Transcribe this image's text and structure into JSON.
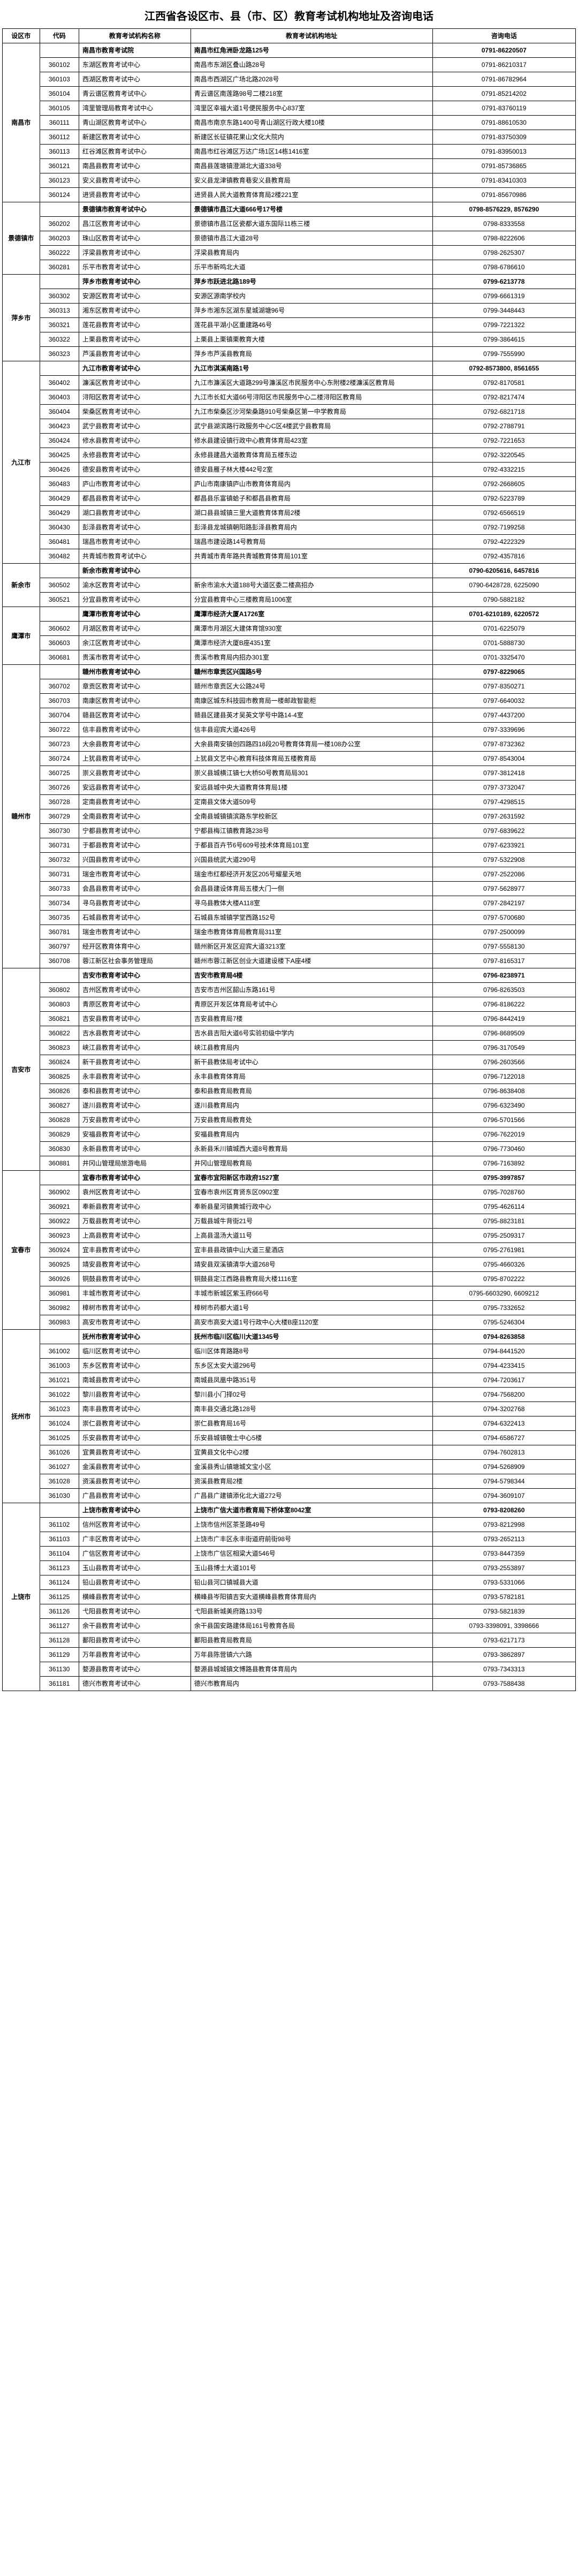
{
  "title": "江西省各设区市、县（市、区）教育考试机构地址及咨询电话",
  "columns": [
    "设区市",
    "代码",
    "教育考试机构名称",
    "教育考试机构地址",
    "咨询电话"
  ],
  "cities": [
    {
      "name": "南昌市",
      "header": {
        "name": "南昌市教育考试院",
        "addr": "南昌市红角洲卧龙路125号",
        "phone": "0791-86220507"
      },
      "rows": [
        {
          "code": "360102",
          "name": "东湖区教育考试中心",
          "addr": "南昌市东湖区叠山路28号",
          "phone": "0791-86210317"
        },
        {
          "code": "360103",
          "name": "西湖区教育考试中心",
          "addr": "南昌市西湖区广场北路2028号",
          "phone": "0791-86782964"
        },
        {
          "code": "360104",
          "name": "青云谱区教育考试中心",
          "addr": "青云谱区南莲路98号二楼218室",
          "phone": "0791-85214202"
        },
        {
          "code": "360105",
          "name": "湾里管理局教育考试中心",
          "addr": "湾里区幸福大道1号便民服务中心837室",
          "phone": "0791-83760119"
        },
        {
          "code": "360111",
          "name": "青山湖区教育考试中心",
          "addr": "南昌市南京东路1400号青山湖区行政大楼10楼",
          "phone": "0791-88610530"
        },
        {
          "code": "360112",
          "name": "新建区教育考试中心",
          "addr": "新建区长征镇花果山文化大院内",
          "phone": "0791-83750309"
        },
        {
          "code": "360113",
          "name": "红谷滩区教育考试中心",
          "addr": "南昌市红谷滩区万达广场1区14栋1416室",
          "phone": "0791-83950013"
        },
        {
          "code": "360121",
          "name": "南昌县教育考试中心",
          "addr": "南昌县莲塘镇澄湖北大道338号",
          "phone": "0791-85736865"
        },
        {
          "code": "360123",
          "name": "安义县教育考试中心",
          "addr": "安义县龙津镇教育巷安义县教育局",
          "phone": "0791-83410303"
        },
        {
          "code": "360124",
          "name": "进贤县教育考试中心",
          "addr": "进贤县人民大道教育体育局2楼221室",
          "phone": "0791-85670986"
        }
      ]
    },
    {
      "name": "景德镇市",
      "header": {
        "name": "景德镇市教育考试中心",
        "addr": "景德镇市昌江大道666号17号楼",
        "phone": "0798-8576229, 8576290"
      },
      "rows": [
        {
          "code": "360202",
          "name": "昌江区教育考试中心",
          "addr": "景德镇市昌江区瓷都大道东国际11栋三楼",
          "phone": "0798-8333558"
        },
        {
          "code": "360203",
          "name": "珠山区教育考试中心",
          "addr": "景德镇市昌江大道28号",
          "phone": "0798-8222606"
        },
        {
          "code": "360222",
          "name": "浮梁县教育考试中心",
          "addr": "浮梁县教育局内",
          "phone": "0798-2625307"
        },
        {
          "code": "360281",
          "name": "乐平市教育考试中心",
          "addr": "乐平市新鸣北大道",
          "phone": "0798-6786610"
        }
      ]
    },
    {
      "name": "萍乡市",
      "header": {
        "name": "萍乡市教育考试中心",
        "addr": "萍乡市跃进北路189号",
        "phone": "0799-6213778"
      },
      "rows": [
        {
          "code": "360302",
          "name": "安源区教育考试中心",
          "addr": "安源区源南学校内",
          "phone": "0799-6661319"
        },
        {
          "code": "360313",
          "name": "湘东区教育考试中心",
          "addr": "萍乡市湘东区湖东星城湖塘96号",
          "phone": "0799-3448443"
        },
        {
          "code": "360321",
          "name": "莲花县教育考试中心",
          "addr": "莲花县平湖小区重建路46号",
          "phone": "0799-7221322"
        },
        {
          "code": "360322",
          "name": "上栗县教育考试中心",
          "addr": "上栗县上栗镇栗教育大楼",
          "phone": "0799-3864615"
        },
        {
          "code": "360323",
          "name": "芦溪县教育考试中心",
          "addr": "萍乡市芦溪县教育局",
          "phone": "0799-7555990"
        }
      ]
    },
    {
      "name": "九江市",
      "header": {
        "name": "九江市教育考试中心",
        "addr": "九江市淇溪南路1号",
        "phone": "0792-8573800, 8561655"
      },
      "rows": [
        {
          "code": "360402",
          "name": "濂溪区教育考试中心",
          "addr": "九江市濂溪区大道路299号濂溪区市民服务中心东附楼2楼濂溪区教育局",
          "phone": "0792-8170581"
        },
        {
          "code": "360403",
          "name": "浔阳区教育考试中心",
          "addr": "九江市长虹大道66号浔阳区市民服务中心二楼浔阳区教育局",
          "phone": "0792-8217474"
        },
        {
          "code": "360404",
          "name": "柴桑区教育考试中心",
          "addr": "九江市柴桑区沙河柴桑路910号柴桑区第一中学教育局",
          "phone": "0792-6821718"
        },
        {
          "code": "360423",
          "name": "武宁县教育考试中心",
          "addr": "武宁县湖滨路行政服务中心C区4楼武宁县教育局",
          "phone": "0792-2788791"
        },
        {
          "code": "360424",
          "name": "修水县教育考试中心",
          "addr": "修水县建设镇行政中心教育体育局423室",
          "phone": "0792-7221653"
        },
        {
          "code": "360425",
          "name": "永修县教育考试中心",
          "addr": "永修县建昌大道教育体育局五楼东边",
          "phone": "0792-3220545"
        },
        {
          "code": "360426",
          "name": "德安县教育考试中心",
          "addr": "德安县雁子林大楼442号2室",
          "phone": "0792-4332215"
        },
        {
          "code": "360483",
          "name": "庐山市教育考试中心",
          "addr": "庐山市南康镇庐山市教育体育局内",
          "phone": "0792-2668605"
        },
        {
          "code": "360429",
          "name": "都昌县教育考试中心",
          "addr": "都昌县乐富镇蛤子和都昌县教育局",
          "phone": "0792-5223789"
        },
        {
          "code": "360429",
          "name": "湖口县教育考试中心",
          "addr": "湖口县县城镇三里大道教育体育局2楼",
          "phone": "0792-6566519"
        },
        {
          "code": "360430",
          "name": "彭泽县教育考试中心",
          "addr": "彭泽县龙城镇朝阳路彭泽县教育局内",
          "phone": "0792-7199258"
        },
        {
          "code": "360481",
          "name": "瑞昌市教育考试中心",
          "addr": "瑞昌市建设路14号教育局",
          "phone": "0792-4222329"
        },
        {
          "code": "360482",
          "name": "共青城市教育考试中心",
          "addr": "共青城市青年路共青城教育体育局101室",
          "phone": "0792-4357816"
        }
      ]
    },
    {
      "name": "新余市",
      "header": {
        "name": "新余市教育考试中心",
        "addr": "",
        "phone": "0790-6205616, 6457816"
      },
      "rows": [
        {
          "code": "360502",
          "name": "渝水区教育考试中心",
          "addr": "新余市渝水大道188号大道区委二楼高招办",
          "phone": "0790-6428728, 6225090"
        },
        {
          "code": "360521",
          "name": "分宜县教育考试中心",
          "addr": "分宜县教育中心三楼教育局1006室",
          "phone": "0790-5882182"
        }
      ]
    },
    {
      "name": "鹰潭市",
      "header": {
        "name": "鹰潭市教育考试中心",
        "addr": "鹰潭市经济大厦A1726室",
        "phone": "0701-6210189, 6220572"
      },
      "rows": [
        {
          "code": "360602",
          "name": "月湖区教育考试中心",
          "addr": "鹰潭市月湖区大建体育馆930室",
          "phone": "0701-6225079"
        },
        {
          "code": "360603",
          "name": "余江区教育考试中心",
          "addr": "鹰潭市经济大厦B座4351室",
          "phone": "0701-5888730"
        },
        {
          "code": "360681",
          "name": "贵溪市教育考试中心",
          "addr": "贵溪市教育局内招办301室",
          "phone": "0701-3325470"
        }
      ]
    },
    {
      "name": "赣州市",
      "header": {
        "name": "赣州市教育考试中心",
        "addr": "赣州市章贡区兴国路5号",
        "phone": "0797-8229065"
      },
      "rows": [
        {
          "code": "360702",
          "name": "章贡区教育考试中心",
          "addr": "赣州市章贡区大公路24号",
          "phone": "0797-8350271"
        },
        {
          "code": "360703",
          "name": "南康区教育考试中心",
          "addr": "南康区城东科技园市教育局一楼邮政智能柜",
          "phone": "0797-6640032"
        },
        {
          "code": "360704",
          "name": "赣县区教育考试中心",
          "addr": "赣县区建县英才吴英文学号中路14-4室",
          "phone": "0797-4437200"
        },
        {
          "code": "360722",
          "name": "信丰县教育考试中心",
          "addr": "信丰县迎宾大道426号",
          "phone": "0797-3339696"
        },
        {
          "code": "360723",
          "name": "大余县教育考试中心",
          "addr": "大余县南安镇创四路四18段20号教育体育局一楼108办公室",
          "phone": "0797-8732362"
        },
        {
          "code": "360724",
          "name": "上犹县教育考试中心",
          "addr": "上犹县文艺中心教育科技体育局五楼教育局",
          "phone": "0797-8543004"
        },
        {
          "code": "360725",
          "name": "崇义县教育考试中心",
          "addr": "崇义县城横江镇七大桥50号教育局局301",
          "phone": "0797-3812418"
        },
        {
          "code": "360726",
          "name": "安远县教育考试中心",
          "addr": "安远县城中央大道教育体育局1楼",
          "phone": "0797-3732047"
        },
        {
          "code": "360728",
          "name": "定南县教育考试中心",
          "addr": "定南县文体大道509号",
          "phone": "0797-4298515"
        },
        {
          "code": "360729",
          "name": "全南县教育考试中心",
          "addr": "全南县城镇镇滨路东学校新区",
          "phone": "0797-2631592"
        },
        {
          "code": "360730",
          "name": "宁都县教育考试中心",
          "addr": "宁都县梅江镇教育路238号",
          "phone": "0797-6839622"
        },
        {
          "code": "360731",
          "name": "于都县教育考试中心",
          "addr": "于都县百卉节6号609号技术体育局101室",
          "phone": "0797-6233921"
        },
        {
          "code": "360732",
          "name": "兴国县教育考试中心",
          "addr": "兴国县统武大道290号",
          "phone": "0797-5322908"
        },
        {
          "code": "360731",
          "name": "瑞金市教育考试中心",
          "addr": "瑞金市红都经济开发区205号耀星天地",
          "phone": "0797-2522086"
        },
        {
          "code": "360733",
          "name": "会昌县教育考试中心",
          "addr": "会昌县建设体育局五楼大门一侧",
          "phone": "0797-5628977"
        },
        {
          "code": "360734",
          "name": "寻乌县教育考试中心",
          "addr": "寻乌县教体大楼A118室",
          "phone": "0797-2842197"
        },
        {
          "code": "360735",
          "name": "石城县教育考试中心",
          "addr": "石城县东城镇学堂西路152号",
          "phone": "0797-5700680"
        },
        {
          "code": "360781",
          "name": "瑞金市教育考试中心",
          "addr": "瑞金市教育体育局教育局311室",
          "phone": "0797-2500099"
        },
        {
          "code": "360797",
          "name": "经开区教育体育中心",
          "addr": "赣州新区开发区迎宾大道3213室",
          "phone": "0797-5558130"
        },
        {
          "code": "360708",
          "name": "蓉江新区社会事务管理局",
          "addr": "赣州市蓉江新区创业大道建设楼下A座4楼",
          "phone": "0797-8165317"
        }
      ]
    },
    {
      "name": "吉安市",
      "header": {
        "name": "吉安市教育考试中心",
        "addr": "吉安市教育局4楼",
        "phone": "0796-8238971"
      },
      "rows": [
        {
          "code": "360802",
          "name": "吉州区教育考试中心",
          "addr": "吉安市吉州区韶山东路161号",
          "phone": "0796-8263503"
        },
        {
          "code": "360803",
          "name": "青原区教育考试中心",
          "addr": "青原区开发区体育局考试中心",
          "phone": "0796-8186222"
        },
        {
          "code": "360821",
          "name": "吉安县教育考试中心",
          "addr": "吉安县教育局7楼",
          "phone": "0796-8442419"
        },
        {
          "code": "360822",
          "name": "吉水县教育考试中心",
          "addr": "吉水县吉阳大道6号实验初级中学内",
          "phone": "0796-8689509"
        },
        {
          "code": "360823",
          "name": "峡江县教育考试中心",
          "addr": "峡江县教育局内",
          "phone": "0796-3170549"
        },
        {
          "code": "360824",
          "name": "新干县教育考试中心",
          "addr": "新干县教体局考试中心",
          "phone": "0796-2603566"
        },
        {
          "code": "360825",
          "name": "永丰县教育考试中心",
          "addr": "永丰县教育体育局",
          "phone": "0796-7122018"
        },
        {
          "code": "360826",
          "name": "泰和县教育考试中心",
          "addr": "泰和县教育局教育局",
          "phone": "0796-8638408"
        },
        {
          "code": "360827",
          "name": "遂川县教育考试中心",
          "addr": "遂川县教育局内",
          "phone": "0796-6323490"
        },
        {
          "code": "360828",
          "name": "万安县教育考试中心",
          "addr": "万安县教育局教育处",
          "phone": "0796-5701566"
        },
        {
          "code": "360829",
          "name": "安福县教育考试中心",
          "addr": "安福县教育局内",
          "phone": "0796-7622019"
        },
        {
          "code": "360830",
          "name": "永新县教育考试中心",
          "addr": "永新县禾川镇城西大道8号教育局",
          "phone": "0796-7730460"
        },
        {
          "code": "360881",
          "name": "井冈山管理局旅游电局",
          "addr": "井冈山管理局教育局",
          "phone": "0796-7163892"
        }
      ]
    },
    {
      "name": "宜春市",
      "header": {
        "name": "宜春市教育考试中心",
        "addr": "宜春市宜阳新区市政府1527室",
        "phone": "0795-3997857"
      },
      "rows": [
        {
          "code": "360902",
          "name": "袁州区教育考试中心",
          "addr": "宜春市袁州区育贤东区0902室",
          "phone": "0795-7028760"
        },
        {
          "code": "360921",
          "name": "奉新县教育考试中心",
          "addr": "奉新县星河镇黄城行政中心",
          "phone": "0795-4626114"
        },
        {
          "code": "360922",
          "name": "万载县教育考试中心",
          "addr": "万载县城牛背街21号",
          "phone": "0795-8823181"
        },
        {
          "code": "360923",
          "name": "上高县教育考试中心",
          "addr": "上高县温汤大道11号",
          "phone": "0795-2509317"
        },
        {
          "code": "360924",
          "name": "宜丰县教育考试中心",
          "addr": "宜丰县县政镇中山大道三星酒店",
          "phone": "0795-2761981"
        },
        {
          "code": "360925",
          "name": "靖安县教育考试中心",
          "addr": "靖安县双溪镇清华大道268号",
          "phone": "0795-4660326"
        },
        {
          "code": "360926",
          "name": "铜鼓县教育考试中心",
          "addr": "铜鼓县定江西路县教育局大楼1116室",
          "phone": "0795-8702222"
        },
        {
          "code": "360981",
          "name": "丰城市教育考试中心",
          "addr": "丰城市新城区紫玉府666号",
          "phone": "0795-6603290, 6609212"
        },
        {
          "code": "360982",
          "name": "樟树市教育考试中心",
          "addr": "樟树市药都大道1号",
          "phone": "0795-7332652"
        },
        {
          "code": "360983",
          "name": "高安市教育考试中心",
          "addr": "高安市高安大道1号行政中心大楼B座1120室",
          "phone": "0795-5246304"
        }
      ]
    },
    {
      "name": "抚州市",
      "header": {
        "name": "抚州市教育考试中心",
        "addr": "抚州市临川区临川大道1345号",
        "phone": "0794-8263858"
      },
      "rows": [
        {
          "code": "361002",
          "name": "临川区教育考试中心",
          "addr": "临川区体育路路8号",
          "phone": "0794-8441520"
        },
        {
          "code": "361003",
          "name": "东乡区教育考试中心",
          "addr": "东乡区太安大道296号",
          "phone": "0794-4233415"
        },
        {
          "code": "361021",
          "name": "南城县教育考试中心",
          "addr": "南城县凤凰中路351号",
          "phone": "0794-7203617"
        },
        {
          "code": "361022",
          "name": "黎川县教育考试中心",
          "addr": "黎川县小门择02号",
          "phone": "0794-7568200"
        },
        {
          "code": "361023",
          "name": "南丰县教育考试中心",
          "addr": "南丰县交通北路128号",
          "phone": "0794-3202768"
        },
        {
          "code": "361024",
          "name": "崇仁县教育考试中心",
          "addr": "崇仁县教育局16号",
          "phone": "0794-6322413"
        },
        {
          "code": "361025",
          "name": "乐安县教育考试中心",
          "addr": "乐安县城镇敬士中心5楼",
          "phone": "0794-6586727"
        },
        {
          "code": "361026",
          "name": "宜黄县教育考试中心",
          "addr": "宜黄县文化中心2楼",
          "phone": "0794-7602813"
        },
        {
          "code": "361027",
          "name": "金溪县教育考试中心",
          "addr": "金溪县秀山镇塘城文宝小区",
          "phone": "0794-5268909"
        },
        {
          "code": "361028",
          "name": "资溪县教育考试中心",
          "addr": "资溪县教育局2楼",
          "phone": "0794-5798344"
        },
        {
          "code": "361030",
          "name": "广昌县教育考试中心",
          "addr": "广昌县广建镇添化北大道272号",
          "phone": "0794-3609107"
        }
      ]
    },
    {
      "name": "上饶市",
      "header": {
        "name": "上饶市教育考试中心",
        "addr": "上饶市广信大道市教育局下桥体室8042室",
        "phone": "0793-8208260"
      },
      "rows": [
        {
          "code": "361102",
          "name": "信州区教育考试中心",
          "addr": "上饶市信州区茶圣路49号",
          "phone": "0793-8212998"
        },
        {
          "code": "361103",
          "name": "广丰区教育考试中心",
          "addr": "上饶市广丰区永丰街道府前街98号",
          "phone": "0793-2652113"
        },
        {
          "code": "361104",
          "name": "广信区教育考试中心",
          "addr": "上饶市广信区相梁大道546号",
          "phone": "0793-8447359"
        },
        {
          "code": "361123",
          "name": "玉山县教育考试中心",
          "addr": "玉山县博士大道101号",
          "phone": "0793-2553897"
        },
        {
          "code": "361124",
          "name": "铅山县教育考试中心",
          "addr": "铅山县河口镇城县大道",
          "phone": "0793-5331066"
        },
        {
          "code": "361125",
          "name": "横峰县教育考试中心",
          "addr": "横峰县岑阳镇吉安大道横峰县教育体育局内",
          "phone": "0793-5782181"
        },
        {
          "code": "361126",
          "name": "弋阳县教育考试中心",
          "addr": "弋阳县新城美府路133号",
          "phone": "0793-5821839"
        },
        {
          "code": "361127",
          "name": "余干县教育考试中心",
          "addr": "余干县国安路建体局161号教育各局",
          "phone": "0793-3398091, 3398666"
        },
        {
          "code": "361128",
          "name": "鄱阳县教育考试中心",
          "addr": "鄱阳县教育局教育局",
          "phone": "0793-6217173"
        },
        {
          "code": "361129",
          "name": "万年县教育考试中心",
          "addr": "万年县陈营镇六六路",
          "phone": "0793-3862897"
        },
        {
          "code": "361130",
          "name": "婺源县教育考试中心",
          "addr": "婺源县城城镇文博路县教育体育局内",
          "phone": "0793-7343313"
        },
        {
          "code": "361181",
          "name": "德兴市教育考试中心",
          "addr": "德兴市教育局内",
          "phone": "0793-7588438"
        }
      ]
    }
  ]
}
